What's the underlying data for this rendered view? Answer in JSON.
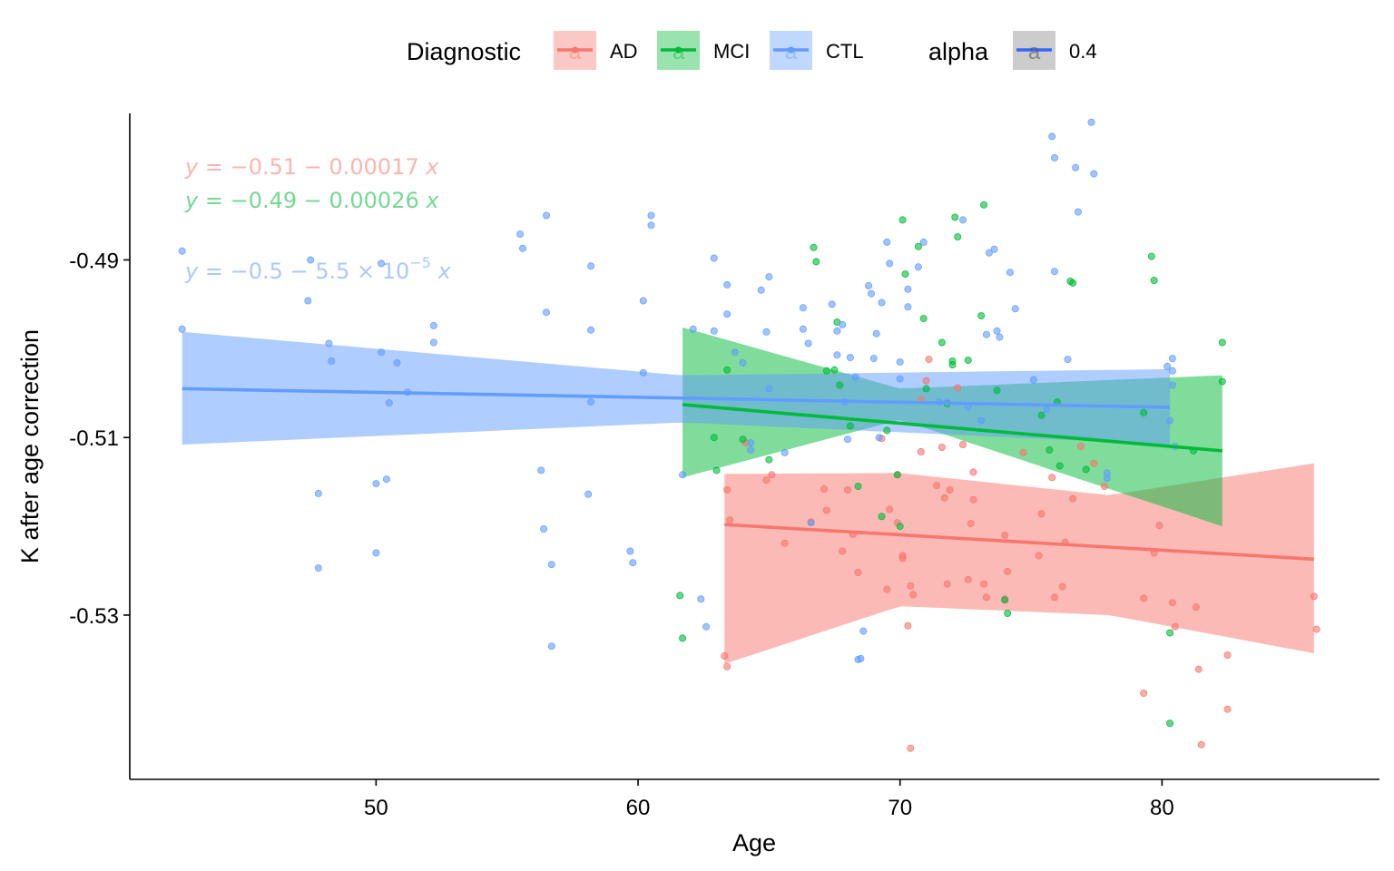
{
  "legend": {
    "diagnostic_title": "Diagnostic",
    "alpha_title": "alpha",
    "alpha_value": "0.4",
    "key_glyph": "a",
    "items": [
      {
        "label": "AD",
        "color": "#F8766D"
      },
      {
        "label": "MCI",
        "color": "#00BA38"
      },
      {
        "label": "CTL",
        "color": "#619CFF"
      }
    ],
    "alpha_color": "#3366FF"
  },
  "equations": [
    {
      "group": "AD",
      "color": "#F8766D",
      "y": "y",
      "eqsign": " = ",
      "rest": "−0.51 − 0.00017 ",
      "x": "x"
    },
    {
      "group": "MCI",
      "color": "#00BA38",
      "y": "y",
      "eqsign": " = ",
      "rest": "−0.49 − 0.00026 ",
      "x": "x"
    },
    {
      "group": "CTL",
      "color": "#619CFF",
      "y": "y",
      "eqsign": " = ",
      "rest": "−0.5 − 5.5 × 10",
      "exp": "−5",
      "x": "x"
    }
  ],
  "chart_data": {
    "type": "scatter",
    "xlabel": "Age",
    "ylabel": "K after age correction",
    "xlim": [
      40.6,
      88.3
    ],
    "ylim": [
      -0.5485,
      -0.4735
    ],
    "xticks": [
      50,
      60,
      70,
      80
    ],
    "xtick_labels": [
      "50",
      "60",
      "70",
      "80"
    ],
    "yticks": [
      -0.49,
      -0.51,
      -0.53
    ],
    "ytick_labels": [
      "-0.49",
      "-0.51",
      "-0.53"
    ],
    "grid": false,
    "legend_position": "top",
    "series": [
      {
        "name": "AD",
        "color": "#F8766D",
        "fit": {
          "x": [
            63.3,
            85.8
          ],
          "y": [
            -0.5198,
            -0.5237
          ]
        },
        "band": {
          "x": [
            63.3,
            70.0,
            78.0,
            85.8
          ],
          "upper": [
            -0.5141,
            -0.514,
            -0.5165,
            -0.5129
          ],
          "lower": [
            -0.5355,
            -0.529,
            -0.53,
            -0.5343
          ]
        },
        "points": [
          [
            63.3,
            -0.5346
          ],
          [
            63.4,
            -0.5358
          ],
          [
            63.4,
            -0.5159
          ],
          [
            63.5,
            -0.5193
          ],
          [
            64.1,
            -0.5106
          ],
          [
            64.9,
            -0.5148
          ],
          [
            65.1,
            -0.5142
          ],
          [
            65.6,
            -0.5219
          ],
          [
            66.6,
            -0.5195
          ],
          [
            67.1,
            -0.5158
          ],
          [
            67.2,
            -0.5182
          ],
          [
            67.8,
            -0.5228
          ],
          [
            68.0,
            -0.5159
          ],
          [
            68.2,
            -0.5209
          ],
          [
            68.4,
            -0.5252
          ],
          [
            69.3,
            -0.5101
          ],
          [
            69.5,
            -0.5271
          ],
          [
            69.6,
            -0.5181
          ],
          [
            69.9,
            -0.5142
          ],
          [
            69.9,
            -0.5196
          ],
          [
            70.1,
            -0.5233
          ],
          [
            70.1,
            -0.5236
          ],
          [
            70.3,
            -0.5312
          ],
          [
            70.4,
            -0.545
          ],
          [
            70.4,
            -0.5267
          ],
          [
            70.5,
            -0.5277
          ],
          [
            70.8,
            -0.5116
          ],
          [
            70.8,
            -0.5057
          ],
          [
            71.0,
            -0.5036
          ],
          [
            71.1,
            -0.5012
          ],
          [
            71.4,
            -0.5154
          ],
          [
            71.6,
            -0.5111
          ],
          [
            71.7,
            -0.5168
          ],
          [
            71.8,
            -0.5265
          ],
          [
            71.9,
            -0.5159
          ],
          [
            72.2,
            -0.5044
          ],
          [
            72.4,
            -0.5108
          ],
          [
            72.6,
            -0.526
          ],
          [
            72.7,
            -0.5197
          ],
          [
            72.8,
            -0.517
          ],
          [
            72.8,
            -0.5139
          ],
          [
            73.2,
            -0.5265
          ],
          [
            73.3,
            -0.528
          ],
          [
            74.0,
            -0.521
          ],
          [
            74.0,
            -0.5282
          ],
          [
            74.1,
            -0.5251
          ],
          [
            74.7,
            -0.5117
          ],
          [
            75.3,
            -0.5233
          ],
          [
            75.4,
            -0.5186
          ],
          [
            75.9,
            -0.528
          ],
          [
            75.8,
            -0.5145
          ],
          [
            76.2,
            -0.5268
          ],
          [
            76.3,
            -0.5218
          ],
          [
            76.6,
            -0.5169
          ],
          [
            76.9,
            -0.511
          ],
          [
            77.4,
            -0.5129
          ],
          [
            77.8,
            -0.5155
          ],
          [
            79.3,
            -0.5281
          ],
          [
            79.3,
            -0.5388
          ],
          [
            79.7,
            -0.523
          ],
          [
            79.9,
            -0.5199
          ],
          [
            80.4,
            -0.5286
          ],
          [
            80.5,
            -0.5313
          ],
          [
            81.3,
            -0.5291
          ],
          [
            81.4,
            -0.5361
          ],
          [
            81.5,
            -0.5446
          ],
          [
            82.5,
            -0.5345
          ],
          [
            82.5,
            -0.5406
          ],
          [
            85.8,
            -0.5279
          ],
          [
            85.9,
            -0.5316
          ]
        ]
      },
      {
        "name": "MCI",
        "color": "#00BA38",
        "fit": {
          "x": [
            61.7,
            82.3
          ],
          "y": [
            -0.5063,
            -0.5115
          ]
        },
        "band": {
          "x": [
            61.7,
            70.0,
            82.3
          ],
          "upper": [
            -0.4976,
            -0.5045,
            -0.503
          ],
          "lower": [
            -0.5145,
            -0.508,
            -0.52
          ]
        },
        "points": [
          [
            61.6,
            -0.5278
          ],
          [
            61.7,
            -0.5326
          ],
          [
            62.9,
            -0.51
          ],
          [
            63.0,
            -0.5137
          ],
          [
            63.4,
            -0.5024
          ],
          [
            64.0,
            -0.5102
          ],
          [
            65.0,
            -0.5125
          ],
          [
            66.7,
            -0.4886
          ],
          [
            66.8,
            -0.4902
          ],
          [
            67.2,
            -0.5025
          ],
          [
            67.5,
            -0.5024
          ],
          [
            67.6,
            -0.497
          ],
          [
            67.7,
            -0.5041
          ],
          [
            68.1,
            -0.5087
          ],
          [
            68.4,
            -0.5155
          ],
          [
            69.3,
            -0.5189
          ],
          [
            69.5,
            -0.5092
          ],
          [
            69.9,
            -0.5142
          ],
          [
            70.0,
            -0.52
          ],
          [
            70.1,
            -0.4855
          ],
          [
            70.2,
            -0.4916
          ],
          [
            70.7,
            -0.4885
          ],
          [
            70.9,
            -0.4966
          ],
          [
            71.0,
            -0.5045
          ],
          [
            71.6,
            -0.4993
          ],
          [
            71.8,
            -0.5062
          ],
          [
            72.0,
            -0.5014
          ],
          [
            72.0,
            -0.5018
          ],
          [
            72.1,
            -0.4852
          ],
          [
            72.2,
            -0.4874
          ],
          [
            72.6,
            -0.5013
          ],
          [
            73.1,
            -0.4963
          ],
          [
            73.2,
            -0.4838
          ],
          [
            73.7,
            -0.5047
          ],
          [
            74.0,
            -0.5283
          ],
          [
            74.1,
            -0.5298
          ],
          [
            75.4,
            -0.5075
          ],
          [
            75.7,
            -0.5114
          ],
          [
            76.0,
            -0.506
          ],
          [
            76.1,
            -0.5132
          ],
          [
            76.5,
            -0.4924
          ],
          [
            76.6,
            -0.4926
          ],
          [
            77.1,
            -0.5136
          ],
          [
            79.3,
            -0.5072
          ],
          [
            79.6,
            -0.4896
          ],
          [
            79.7,
            -0.4923
          ],
          [
            80.3,
            -0.532
          ],
          [
            80.3,
            -0.5422
          ],
          [
            81.2,
            -0.5115
          ],
          [
            82.3,
            -0.4993
          ],
          [
            82.3,
            -0.5037
          ]
        ]
      },
      {
        "name": "CTL",
        "color": "#619CFF",
        "fit": {
          "x": [
            42.6,
            80.3
          ],
          "y": [
            -0.5045,
            -0.5066
          ]
        },
        "band": {
          "x": [
            42.6,
            61.7,
            80.3
          ],
          "upper": [
            -0.4981,
            -0.503,
            -0.5023
          ],
          "lower": [
            -0.5108,
            -0.5083,
            -0.5108
          ]
        },
        "points": [
          [
            42.6,
            -0.489
          ],
          [
            42.6,
            -0.4978
          ],
          [
            47.4,
            -0.4946
          ],
          [
            47.5,
            -0.49
          ],
          [
            47.8,
            -0.5163
          ],
          [
            47.8,
            -0.5247
          ],
          [
            48.2,
            -0.4994
          ],
          [
            48.3,
            -0.5014
          ],
          [
            50.0,
            -0.5152
          ],
          [
            50.0,
            -0.523
          ],
          [
            50.2,
            -0.4904
          ],
          [
            50.2,
            -0.5004
          ],
          [
            50.4,
            -0.5147
          ],
          [
            50.5,
            -0.5061
          ],
          [
            50.8,
            -0.5016
          ],
          [
            51.2,
            -0.5049
          ],
          [
            52.2,
            -0.4974
          ],
          [
            52.2,
            -0.4993
          ],
          [
            55.5,
            -0.4871
          ],
          [
            55.6,
            -0.4887
          ],
          [
            56.3,
            -0.5137
          ],
          [
            56.4,
            -0.5203
          ],
          [
            56.5,
            -0.485
          ],
          [
            56.5,
            -0.4959
          ],
          [
            56.7,
            -0.5243
          ],
          [
            56.7,
            -0.5335
          ],
          [
            58.1,
            -0.5164
          ],
          [
            58.2,
            -0.4979
          ],
          [
            58.2,
            -0.506
          ],
          [
            58.2,
            -0.4907
          ],
          [
            59.7,
            -0.5228
          ],
          [
            59.8,
            -0.5241
          ],
          [
            60.2,
            -0.5027
          ],
          [
            60.2,
            -0.4946
          ],
          [
            60.5,
            -0.485
          ],
          [
            60.5,
            -0.4861
          ],
          [
            61.7,
            -0.5142
          ],
          [
            62.1,
            -0.4978
          ],
          [
            62.4,
            -0.5282
          ],
          [
            62.6,
            -0.5313
          ],
          [
            62.9,
            -0.498
          ],
          [
            62.9,
            -0.4898
          ],
          [
            63.4,
            -0.4928
          ],
          [
            63.4,
            -0.4961
          ],
          [
            63.7,
            -0.5004
          ],
          [
            64.0,
            -0.5016
          ],
          [
            64.3,
            -0.5114
          ],
          [
            64.3,
            -0.5106
          ],
          [
            64.7,
            -0.4934
          ],
          [
            64.9,
            -0.4981
          ],
          [
            65.0,
            -0.4919
          ],
          [
            65.0,
            -0.5045
          ],
          [
            65.6,
            -0.5117
          ],
          [
            66.3,
            -0.4978
          ],
          [
            66.3,
            -0.4954
          ],
          [
            66.5,
            -0.4994
          ],
          [
            66.6,
            -0.5196
          ],
          [
            67.4,
            -0.495
          ],
          [
            67.6,
            -0.498
          ],
          [
            67.6,
            -0.5007
          ],
          [
            67.8,
            -0.4973
          ],
          [
            67.9,
            -0.506
          ],
          [
            68.0,
            -0.5102
          ],
          [
            68.1,
            -0.501
          ],
          [
            68.3,
            -0.5032
          ],
          [
            68.4,
            -0.535
          ],
          [
            68.5,
            -0.5349
          ],
          [
            68.6,
            -0.5318
          ],
          [
            68.8,
            -0.4929
          ],
          [
            68.9,
            -0.4938
          ],
          [
            69.0,
            -0.5011
          ],
          [
            69.1,
            -0.4983
          ],
          [
            69.2,
            -0.51
          ],
          [
            69.3,
            -0.4948
          ],
          [
            69.5,
            -0.488
          ],
          [
            69.6,
            -0.4904
          ],
          [
            70.0,
            -0.5015
          ],
          [
            70.0,
            -0.5034
          ],
          [
            70.3,
            -0.4933
          ],
          [
            70.3,
            -0.4953
          ],
          [
            70.7,
            -0.4908
          ],
          [
            70.9,
            -0.488
          ],
          [
            71.5,
            -0.506
          ],
          [
            71.8,
            -0.506
          ],
          [
            72.4,
            -0.4855
          ],
          [
            72.6,
            -0.5066
          ],
          [
            73.1,
            -0.5081
          ],
          [
            73.3,
            -0.4984
          ],
          [
            73.4,
            -0.4892
          ],
          [
            73.6,
            -0.4888
          ],
          [
            73.7,
            -0.498
          ],
          [
            73.8,
            -0.4987
          ],
          [
            74.2,
            -0.4914
          ],
          [
            74.4,
            -0.4955
          ],
          [
            75.1,
            -0.5035
          ],
          [
            75.6,
            -0.5068
          ],
          [
            75.8,
            -0.4761
          ],
          [
            75.9,
            -0.4785
          ],
          [
            75.9,
            -0.4913
          ],
          [
            76.4,
            -0.5012
          ],
          [
            76.7,
            -0.4796
          ],
          [
            76.8,
            -0.4846
          ],
          [
            77.3,
            -0.4745
          ],
          [
            77.4,
            -0.4803
          ],
          [
            77.9,
            -0.514
          ],
          [
            77.9,
            -0.5146
          ],
          [
            80.2,
            -0.502
          ],
          [
            80.3,
            -0.5081
          ],
          [
            80.4,
            -0.5011
          ],
          [
            80.4,
            -0.5041
          ],
          [
            80.4,
            -0.5025
          ],
          [
            80.5,
            -0.511
          ]
        ]
      }
    ]
  }
}
